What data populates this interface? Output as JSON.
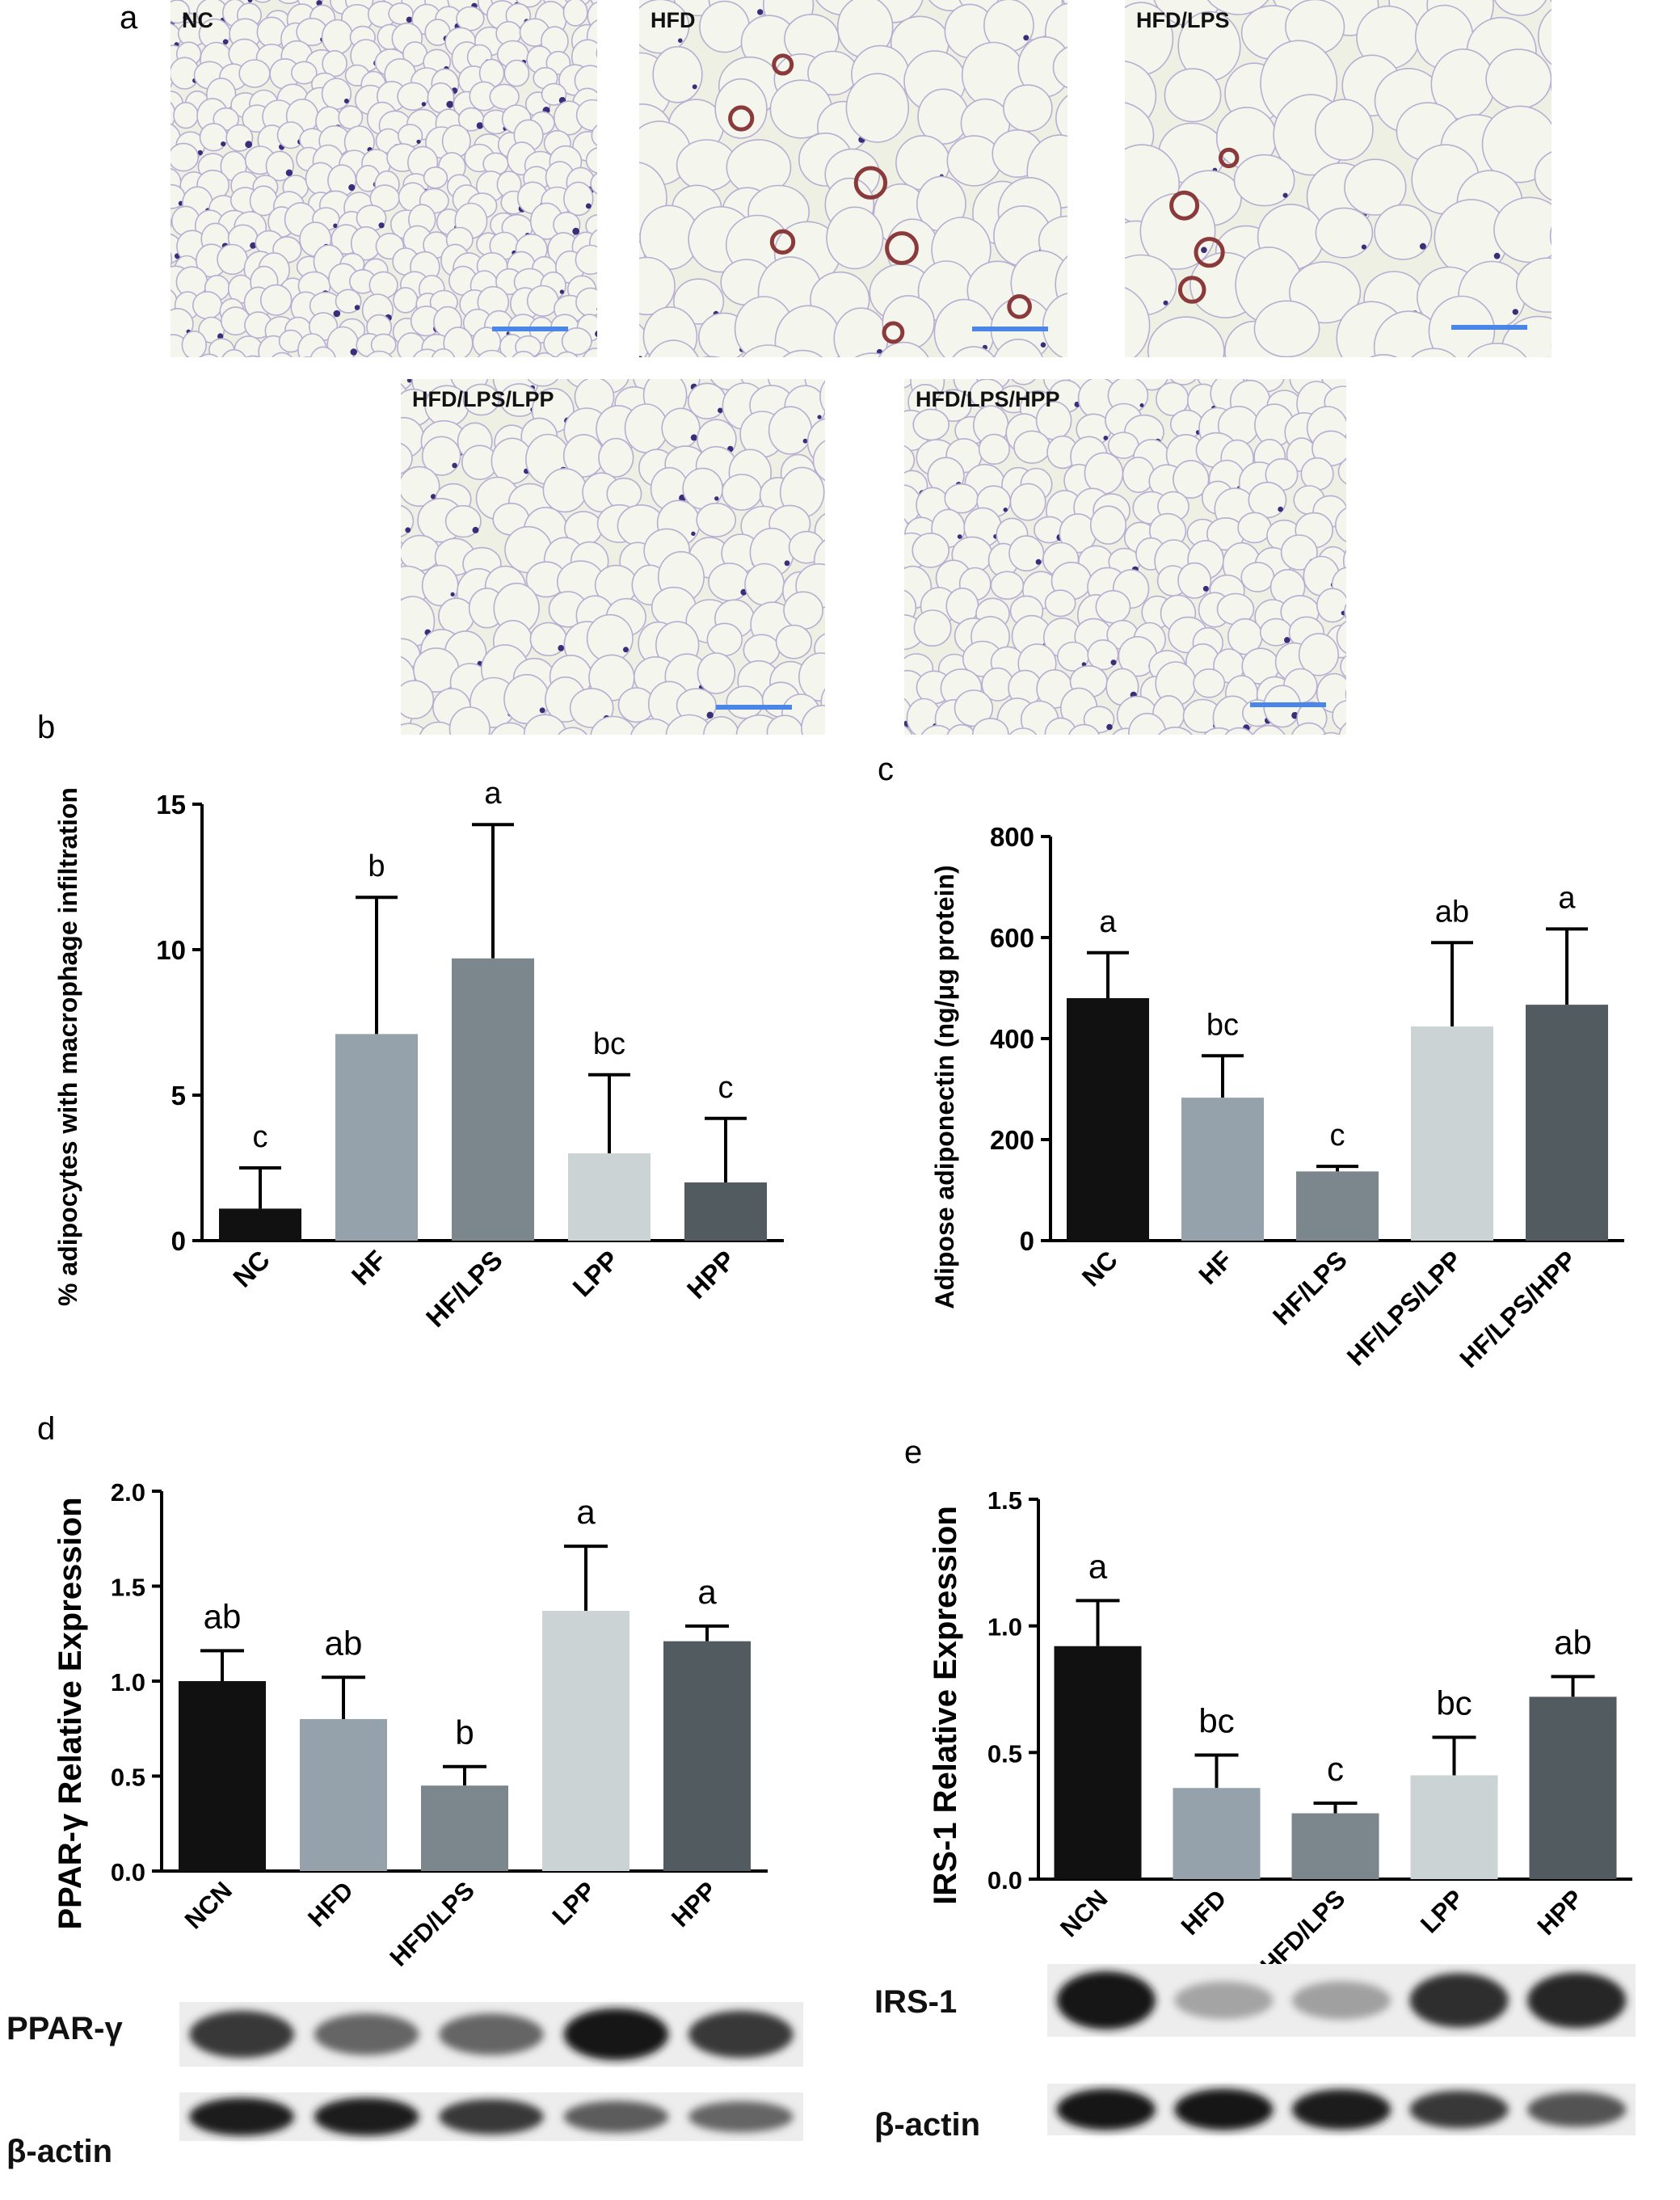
{
  "panel_labels": {
    "a": "a",
    "b": "b",
    "c": "c",
    "d": "d",
    "e": "e"
  },
  "micrographs": [
    {
      "label": "NC"
    },
    {
      "label": "HFD"
    },
    {
      "label": "HFD/LPS"
    },
    {
      "label": "HFD/LPS/LPP"
    },
    {
      "label": "HFD/LPS/HPP"
    }
  ],
  "colors": {
    "c1": "#111111",
    "c2": "#95a2ab",
    "c3": "#7b878c",
    "c4": "#ccd3d5",
    "c5": "#525b60",
    "tissue_bg": "#eef0e4",
    "membrane": "#b8aed2",
    "nucleus": "#3a2d7a",
    "macrophage": "#8a3a3a",
    "scale": "#4a86e8"
  },
  "chart_data": [
    {
      "id": "b",
      "type": "bar",
      "categories": [
        "NC",
        "HF",
        "HF/LPS",
        "LPP",
        "HPP"
      ],
      "values": [
        1.1,
        7.1,
        9.7,
        3.0,
        2.0
      ],
      "errors": [
        1.4,
        4.7,
        4.6,
        2.7,
        2.2
      ],
      "letters": [
        "c",
        "b",
        "a",
        "bc",
        "c"
      ],
      "ylabel": "% adipocytes with macrophage infiltration",
      "ylim": [
        0,
        15
      ],
      "yticks": [
        0,
        5,
        10,
        15
      ],
      "ytick_labels": [
        "0",
        "5",
        "10",
        "15"
      ]
    },
    {
      "id": "c",
      "type": "bar",
      "categories": [
        "NC",
        "HF",
        "HF/LPS",
        "HF/LPS/LPP",
        "HF/LPS/HPP"
      ],
      "values": [
        480,
        283,
        137,
        424,
        467
      ],
      "errors": [
        90,
        83,
        10,
        166,
        150
      ],
      "letters": [
        "a",
        "bc",
        "c",
        "ab",
        "a"
      ],
      "ylabel": "Adipose adiponectin (ng/μg protein)",
      "ylim": [
        0,
        800
      ],
      "yticks": [
        0,
        200,
        400,
        600,
        800
      ],
      "ytick_labels": [
        "0",
        "200",
        "400",
        "600",
        "800"
      ]
    },
    {
      "id": "d",
      "type": "bar",
      "categories": [
        "NCN",
        "HFD",
        "HFD/LPS",
        "LPP",
        "HPP"
      ],
      "values": [
        1.0,
        0.8,
        0.45,
        1.37,
        1.21
      ],
      "errors": [
        0.16,
        0.22,
        0.1,
        0.34,
        0.08
      ],
      "letters": [
        "ab",
        "ab",
        "b",
        "a",
        "a"
      ],
      "ylabel": "PPAR-γ Relative Expression",
      "ylim": [
        0,
        2.0
      ],
      "yticks": [
        0,
        0.5,
        1.0,
        1.5,
        2.0
      ],
      "ytick_labels": [
        "0.0",
        "0.5",
        "1.0",
        "1.5",
        "2.0"
      ]
    },
    {
      "id": "e",
      "type": "bar",
      "categories": [
        "NCN",
        "HFD",
        "HFD/LPS",
        "LPP",
        "HPP"
      ],
      "values": [
        0.92,
        0.36,
        0.26,
        0.41,
        0.72
      ],
      "errors": [
        0.18,
        0.13,
        0.04,
        0.15,
        0.08
      ],
      "letters": [
        "a",
        "bc",
        "c",
        "bc",
        "ab"
      ],
      "ylabel": "IRS-1 Relative Expression",
      "ylim": [
        0,
        1.5
      ],
      "yticks": [
        0,
        0.5,
        1.0,
        1.5
      ],
      "ytick_labels": [
        "0.0",
        "0.5",
        "1.0",
        "1.5"
      ]
    }
  ],
  "blots": {
    "d": {
      "protein": "PPAR-γ",
      "loading": "β-actin",
      "protein_intensity": [
        0.8,
        0.55,
        0.55,
        1.0,
        0.8
      ],
      "loading_intensity": [
        0.95,
        0.95,
        0.8,
        0.6,
        0.55
      ]
    },
    "e": {
      "protein": "IRS-1",
      "loading": "β-actin",
      "protein_intensity": [
        1.0,
        0.2,
        0.22,
        0.85,
        0.9
      ],
      "loading_intensity": [
        1.0,
        1.0,
        0.95,
        0.8,
        0.65
      ]
    }
  }
}
